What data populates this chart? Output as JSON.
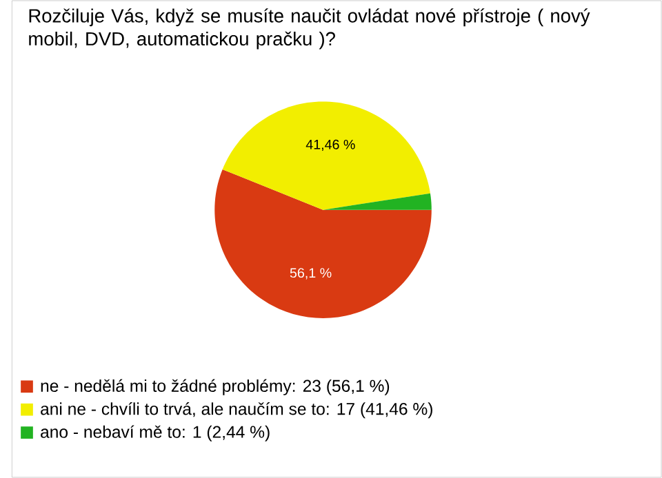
{
  "chart_data": {
    "type": "pie",
    "title": "Rozčiluje Vás, když se musíte naučit ovládat nové přístroje ( nový mobil, DVD, automatickou pračku )?",
    "categories": [
      "ne - nedělá mi to žádné problémy: 23 (56,1 %)",
      "ani ne - chvíli to trvá, ale naučím se to: 17 (41,46 %)",
      "ano - nebaví mě to: 1 (2,44 %)"
    ],
    "values": [
      56.1,
      41.46,
      2.44
    ],
    "colors": [
      "#d93a12",
      "#f2ee00",
      "#22b322"
    ],
    "value_labels": [
      "56,1 %",
      "41,46 %",
      null
    ],
    "legend": "bottom left"
  }
}
